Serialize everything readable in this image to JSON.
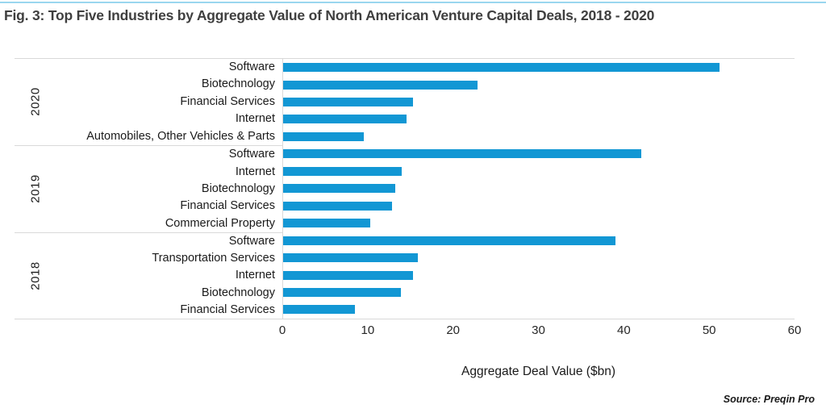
{
  "title": "Fig. 3: Top Five Industries by Aggregate Value of North American Venture Capital Deals, 2018 - 2020",
  "source": "Source: Preqin Pro",
  "colors": {
    "bar": "#1297d4",
    "accent_line": "#9ad6ef",
    "grid_line": "#d9d9d9",
    "title_text": "#3f3f3f"
  },
  "chart_data": {
    "type": "bar",
    "orientation": "horizontal",
    "title": "Fig. 3: Top Five Industries by Aggregate Value of North American Venture Capital Deals, 2018 - 2020",
    "xlabel": "Aggregate Deal Value ($bn)",
    "ylabel": "",
    "xlim": [
      0,
      60
    ],
    "x_ticks": [
      "0",
      "10",
      "20",
      "30",
      "40",
      "50",
      "60"
    ],
    "grid": false,
    "legend": "none",
    "bar_color": "#1297d4",
    "groups": [
      {
        "year": "2020",
        "rows": [
          {
            "label": "Software",
            "value": 51.2
          },
          {
            "label": "Biotechnology",
            "value": 22.8
          },
          {
            "label": "Financial Services",
            "value": 15.2
          },
          {
            "label": "Internet",
            "value": 14.5
          },
          {
            "label": "Automobiles, Other Vehicles & Parts",
            "value": 9.5
          }
        ]
      },
      {
        "year": "2019",
        "rows": [
          {
            "label": "Software",
            "value": 42.0
          },
          {
            "label": "Internet",
            "value": 13.9
          },
          {
            "label": "Biotechnology",
            "value": 13.2
          },
          {
            "label": "Financial Services",
            "value": 12.8
          },
          {
            "label": "Commercial Property",
            "value": 10.2
          }
        ]
      },
      {
        "year": "2018",
        "rows": [
          {
            "label": "Software",
            "value": 39.0
          },
          {
            "label": "Transportation Services",
            "value": 15.8
          },
          {
            "label": "Internet",
            "value": 15.2
          },
          {
            "label": "Biotechnology",
            "value": 13.8
          },
          {
            "label": "Financial Services",
            "value": 8.4
          }
        ]
      }
    ]
  }
}
